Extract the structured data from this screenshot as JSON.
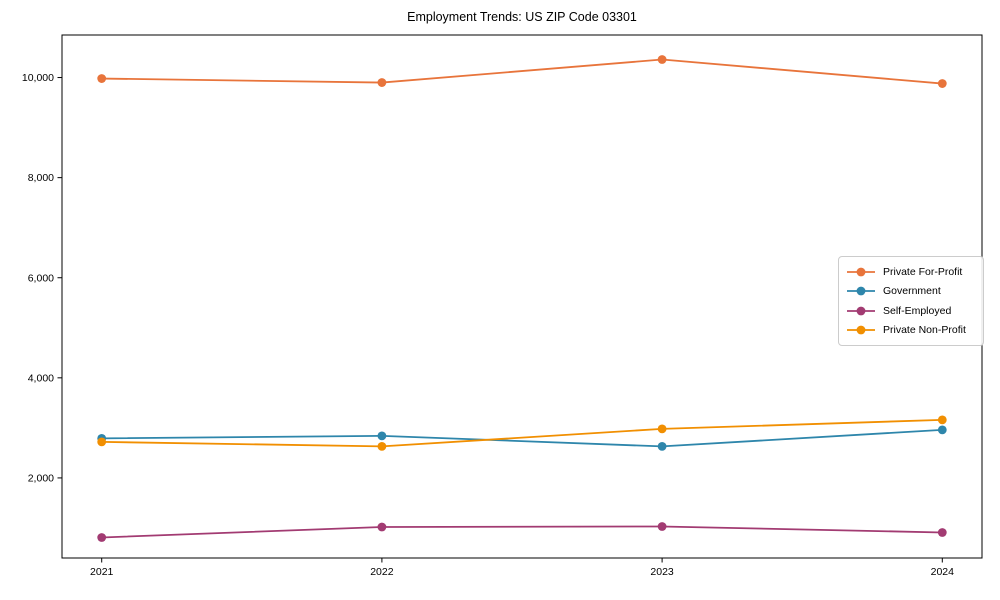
{
  "chart_data": {
    "type": "line",
    "title": "Employment Trends: US ZIP Code 03301",
    "xlabel": "",
    "ylabel": "",
    "categories": [
      "2021",
      "2022",
      "2023",
      "2024"
    ],
    "series": [
      {
        "name": "Private For-Profit",
        "color": "#E8743B",
        "values": [
          9980,
          9900,
          10360,
          9880
        ]
      },
      {
        "name": "Government",
        "color": "#2E86AB",
        "values": [
          2790,
          2840,
          2630,
          2960
        ]
      },
      {
        "name": "Self-Employed",
        "color": "#A23B72",
        "values": [
          810,
          1020,
          1030,
          910
        ]
      },
      {
        "name": "Private Non-Profit",
        "color": "#F18F01",
        "values": [
          2720,
          2630,
          2980,
          3160
        ]
      }
    ],
    "ylim": [
      400,
      10850
    ],
    "yticks": {
      "values": [
        2000,
        4000,
        6000,
        8000,
        10000
      ],
      "labels": [
        "2,000",
        "4,000",
        "6,000",
        "8,000",
        "10,000"
      ]
    },
    "grid": false,
    "legend_position": "center-right",
    "marker": "circle"
  }
}
